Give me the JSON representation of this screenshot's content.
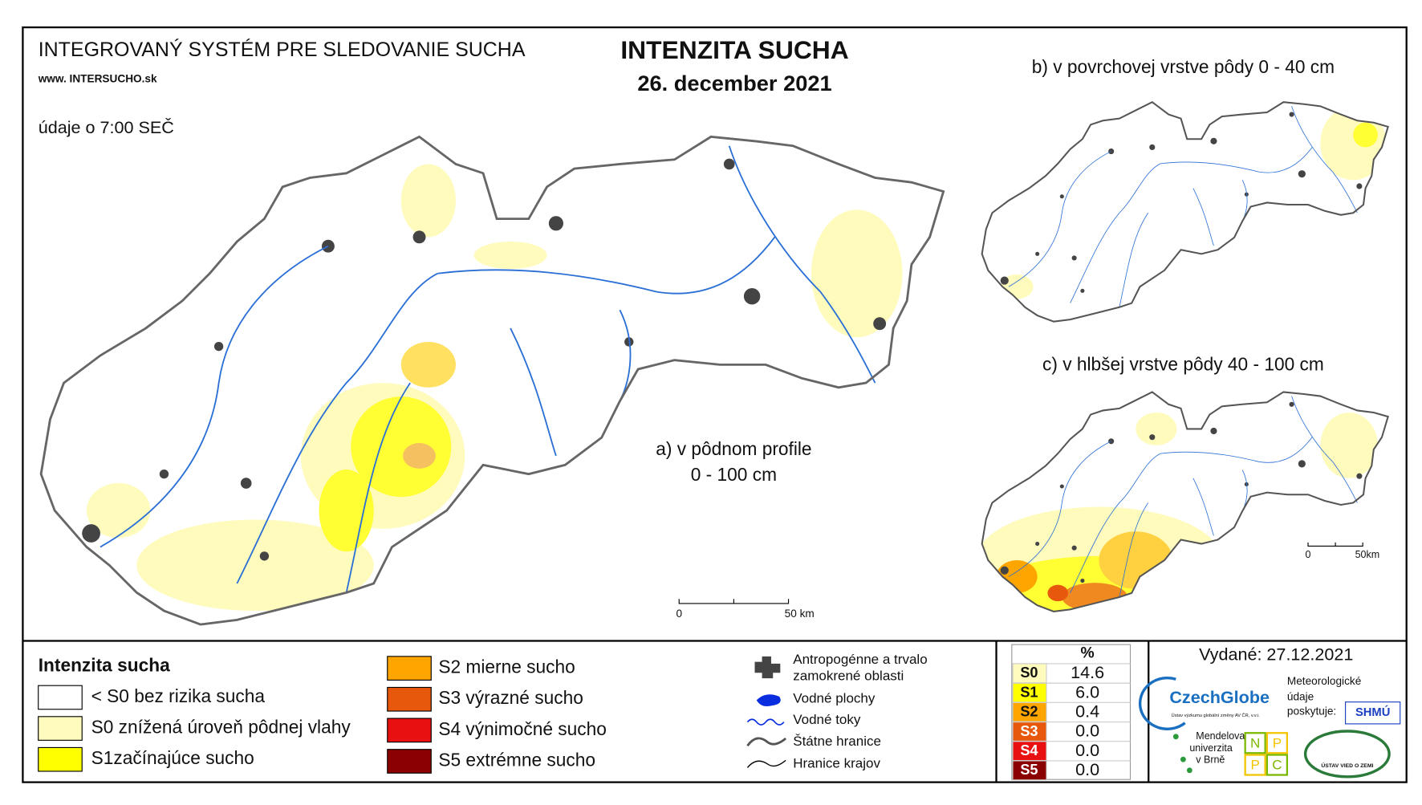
{
  "header": {
    "system_title": "INTEGROVANÝ SYSTÉM PRE SLEDOVANIE SUCHA",
    "website": "www. INTERSUCHO.sk",
    "data_time": "údaje o 7:00 SEČ",
    "title": "INTENZITA SUCHA",
    "date": "26. december 2021"
  },
  "maps": [
    {
      "label": "a) v pôdnom profile",
      "sublabel": "0 - 100 cm",
      "scale_start": "0",
      "scale_end": "50 km"
    },
    {
      "label": "b) v povrchovej vrstve pôdy 0 - 40 cm"
    },
    {
      "label": "c) v hlbšej vrstve pôdy 40 - 100 cm",
      "scale_start": "0",
      "scale_end": "50km"
    }
  ],
  "legend": {
    "title": "Intenzita sucha",
    "items": [
      {
        "label": "< S0 bez rizika sucha",
        "color": "#ffffff"
      },
      {
        "label": "S0 znížená úroveň pôdnej vlahy",
        "color": "#fffbbd"
      },
      {
        "label": "S1začínajúce sucho",
        "color": "#ffff00"
      },
      {
        "label": "S2 mierne sucho",
        "color": "#ffa500"
      },
      {
        "label": "S3 výrazné sucho",
        "color": "#e8580c"
      },
      {
        "label": "S4 výnimočné sucho",
        "color": "#e81010"
      },
      {
        "label": "S5 extrémne sucho",
        "color": "#8b0000"
      }
    ]
  },
  "symbols": [
    {
      "label": "Antropogénne a trvalo",
      "label2": "zamokrené oblasti"
    },
    {
      "label": "Vodné plochy"
    },
    {
      "label": "Vodné toky"
    },
    {
      "label": "Štátne hranice"
    },
    {
      "label": "Hranice krajov"
    }
  ],
  "stats_table": {
    "header": "%",
    "rows": [
      {
        "class": "S0",
        "percent": "14.6",
        "color": "#fffbbd"
      },
      {
        "class": "S1",
        "percent": "6.0",
        "color": "#ffff00"
      },
      {
        "class": "S2",
        "percent": "0.4",
        "color": "#ffa500"
      },
      {
        "class": "S3",
        "percent": "0.0",
        "color": "#e8580c"
      },
      {
        "class": "S4",
        "percent": "0.0",
        "color": "#e81010"
      },
      {
        "class": "S5",
        "percent": "0.0",
        "color": "#8b0000"
      }
    ]
  },
  "footer": {
    "issued": "Vydané: 27.12.2021",
    "czechglobe": "CzechGlobe",
    "czechglobe_sub": "Ústav výzkumu globální změny AV ČR, v.v.i.",
    "meteo_1": "Meteorologické",
    "meteo_2": "údaje",
    "meteo_3": "poskytuje:",
    "shmu": "SHMÚ",
    "mendel_1": "Mendelova",
    "mendel_2": "univerzita",
    "mendel_3": "v Brně",
    "nppc": [
      "N",
      "P",
      "P",
      "C"
    ],
    "uvz": "ÚSTAV VIED O ZEMI"
  }
}
